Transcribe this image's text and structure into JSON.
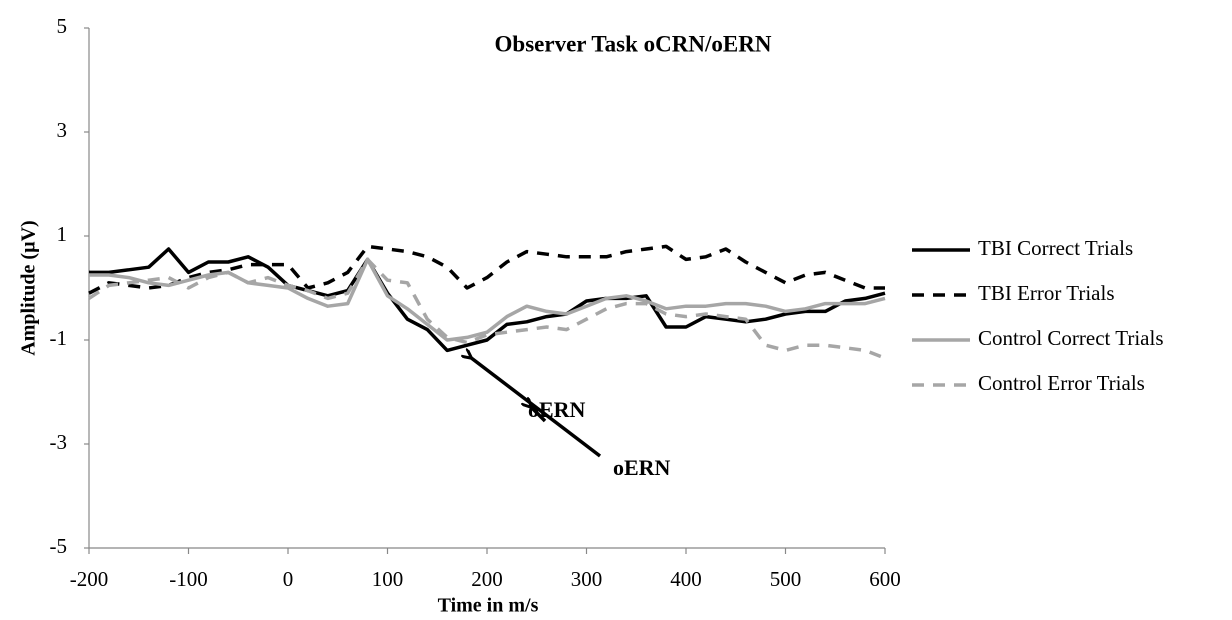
{
  "chart_data": {
    "type": "line",
    "title": "Observer Task oCRN/oERN",
    "x_label": "Time in m/s",
    "y_label": "Amplitude (µV)",
    "x": [
      -200,
      -180,
      -160,
      -140,
      -120,
      -100,
      -80,
      -60,
      -40,
      -20,
      0,
      20,
      40,
      60,
      80,
      100,
      120,
      140,
      160,
      180,
      200,
      220,
      240,
      260,
      280,
      300,
      320,
      340,
      360,
      380,
      400,
      420,
      440,
      460,
      480,
      500,
      520,
      540,
      560,
      580,
      600
    ],
    "xlim": [
      -200,
      600
    ],
    "xticks": [
      -200,
      -100,
      0,
      100,
      200,
      300,
      400,
      500,
      600
    ],
    "ylim": [
      -5,
      5
    ],
    "yticks": [
      -5,
      -3,
      -1,
      1,
      3,
      5
    ],
    "grid": false,
    "legend": "right",
    "series": [
      {
        "name": "TBI Correct Trials",
        "color": "#000000",
        "dash": false,
        "values": [
          0.3,
          0.3,
          0.35,
          0.4,
          0.75,
          0.3,
          0.5,
          0.5,
          0.6,
          0.4,
          0.05,
          -0.05,
          -0.15,
          -0.05,
          0.55,
          -0.1,
          -0.6,
          -0.8,
          -1.2,
          -1.1,
          -1.0,
          -0.7,
          -0.65,
          -0.55,
          -0.5,
          -0.25,
          -0.2,
          -0.2,
          -0.15,
          -0.75,
          -0.75,
          -0.55,
          -0.6,
          -0.65,
          -0.6,
          -0.5,
          -0.45,
          -0.45,
          -0.25,
          -0.2,
          -0.1
        ]
      },
      {
        "name": "TBI Error Trials",
        "color": "#000000",
        "dash": true,
        "values": [
          -0.1,
          0.1,
          0.05,
          0.0,
          0.05,
          0.2,
          0.3,
          0.35,
          0.45,
          0.45,
          0.45,
          0.0,
          0.1,
          0.3,
          0.8,
          0.75,
          0.7,
          0.6,
          0.4,
          0.0,
          0.2,
          0.5,
          0.7,
          0.65,
          0.6,
          0.6,
          0.6,
          0.7,
          0.75,
          0.8,
          0.55,
          0.6,
          0.75,
          0.5,
          0.3,
          0.1,
          0.25,
          0.3,
          0.15,
          0.0,
          0.0
        ]
      },
      {
        "name": "Control Correct Trials",
        "color": "#a6a6a6",
        "dash": false,
        "values": [
          0.25,
          0.25,
          0.2,
          0.1,
          0.05,
          0.15,
          0.25,
          0.3,
          0.1,
          0.05,
          0.0,
          -0.2,
          -0.35,
          -0.3,
          0.55,
          -0.15,
          -0.4,
          -0.7,
          -1.0,
          -0.95,
          -0.85,
          -0.55,
          -0.35,
          -0.45,
          -0.5,
          -0.35,
          -0.2,
          -0.15,
          -0.25,
          -0.4,
          -0.35,
          -0.35,
          -0.3,
          -0.3,
          -0.35,
          -0.45,
          -0.4,
          -0.3,
          -0.3,
          -0.3,
          -0.2
        ]
      },
      {
        "name": "Control Error Trials",
        "color": "#a6a6a6",
        "dash": true,
        "values": [
          -0.2,
          0.05,
          0.1,
          0.15,
          0.2,
          0.0,
          0.2,
          0.3,
          0.1,
          0.2,
          0.05,
          -0.05,
          -0.2,
          -0.1,
          0.55,
          0.15,
          0.1,
          -0.6,
          -0.95,
          -1.05,
          -0.9,
          -0.85,
          -0.8,
          -0.75,
          -0.8,
          -0.6,
          -0.4,
          -0.3,
          -0.3,
          -0.5,
          -0.55,
          -0.5,
          -0.55,
          -0.6,
          -1.1,
          -1.2,
          -1.1,
          -1.1,
          -1.15,
          -1.2,
          -1.35
        ]
      }
    ],
    "annotations": [
      "oERN",
      "oERN"
    ]
  }
}
